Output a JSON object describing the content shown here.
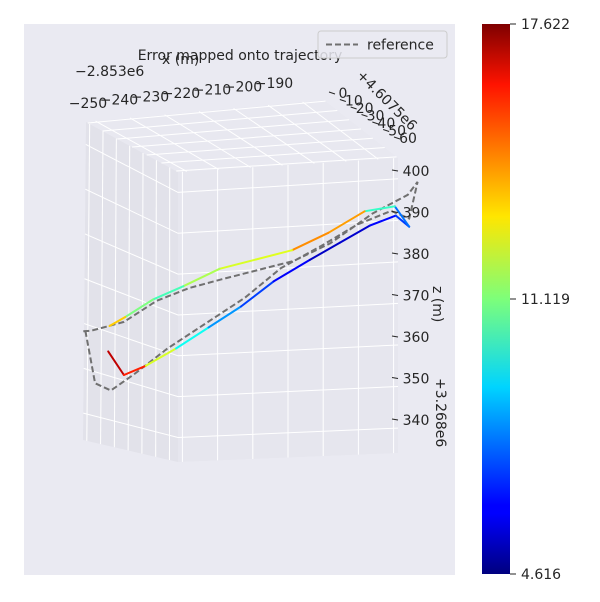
{
  "chart_data": {
    "type": "line",
    "projection": "3d",
    "title": "Error mapped onto trajectory",
    "xlabel": "x (m)",
    "x_offset": "−2.853e6",
    "xticks": [
      "−250",
      "−240",
      "−230",
      "−220",
      "−210",
      "−200",
      "−190"
    ],
    "ylabel": "",
    "y_offset": "+4.6075e6",
    "yticks": [
      "0",
      "10",
      "20",
      "30",
      "40",
      "50",
      "60"
    ],
    "zlabel": "z (m)",
    "z_offset": "+3.268e6",
    "zticks": [
      "340",
      "350",
      "360",
      "370",
      "380",
      "390",
      "400"
    ],
    "zlim": [
      334,
      405
    ],
    "legend": {
      "placement": "top-right",
      "entries": [
        {
          "label": "reference",
          "style": "dashed",
          "color": "#707070"
        }
      ]
    },
    "colorbar": {
      "colormap": "jet",
      "min": 4.616,
      "max": 17.622,
      "tick_labels": [
        "4.616",
        "11.119",
        "17.622"
      ],
      "tick_values": [
        4.616,
        11.119,
        17.622
      ]
    },
    "series": [
      {
        "kind": "reference",
        "x": [
          -251,
          -249,
          -246,
          -242,
          -237,
          -231,
          -225,
          -219,
          -212,
          -206,
          -200,
          -197,
          -196,
          -198,
          -205,
          -212,
          -218,
          -224,
          -230,
          -235,
          -240,
          -245,
          -250,
          -252
        ],
        "y": [
          5,
          6,
          8,
          12,
          18,
          25,
          32,
          38,
          44,
          50,
          55,
          58,
          60,
          59,
          55,
          48,
          42,
          36,
          30,
          24,
          18,
          12,
          6,
          5
        ],
        "z": [
          361,
          348,
          346,
          350,
          356,
          362,
          368,
          375,
          380,
          385,
          388,
          386,
          395,
          392,
          388,
          381,
          377,
          375,
          373,
          371,
          368,
          363,
          361,
          361
        ]
      },
      {
        "kind": "estimate",
        "x": [
          -248,
          -245,
          -241,
          -236,
          -231,
          -226,
          -221,
          -215,
          -210,
          -205,
          -200,
          -197,
          -199,
          -204,
          -210,
          -216,
          -222,
          -228,
          -234,
          -239,
          -244,
          -247
        ],
        "y": [
          10,
          12,
          15,
          20,
          26,
          32,
          38,
          44,
          49,
          54,
          57,
          58,
          55,
          50,
          44,
          38,
          32,
          26,
          20,
          15,
          11,
          9
        ],
        "z": [
          356,
          350,
          352,
          356,
          361,
          366,
          372,
          377,
          381,
          385,
          387,
          384,
          389,
          388,
          383,
          379,
          377,
          375,
          371,
          368,
          364,
          362
        ],
        "error": [
          16.4,
          17.2,
          14.0,
          10.5,
          8.8,
          7.5,
          6.6,
          5.8,
          5.2,
          6.0,
          6.6,
          7.4,
          8.0,
          12.4,
          15.6,
          12.8,
          11.9,
          12.6,
          10.8,
          10.0,
          12.2,
          14.6
        ]
      }
    ]
  }
}
